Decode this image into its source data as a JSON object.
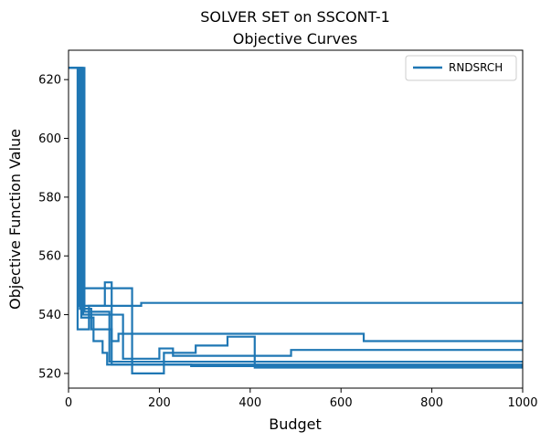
{
  "chart_data": {
    "type": "line",
    "title": "SOLVER SET on SSCONT-1",
    "subtitle": "Objective Curves",
    "xlabel": "Budget",
    "ylabel": "Objective Function Value",
    "xlim": [
      0,
      1000
    ],
    "ylim": [
      515,
      630
    ],
    "xticks": [
      0,
      200,
      400,
      600,
      800,
      1000
    ],
    "yticks": [
      520,
      540,
      560,
      580,
      600,
      620
    ],
    "grid": false,
    "legend": {
      "position": "top-right",
      "entries": [
        "RNDSRCH"
      ]
    },
    "color": "#1f77b4",
    "series": [
      {
        "name": "RNDSRCH",
        "step": true,
        "points": [
          [
            0,
            624
          ],
          [
            30,
            624
          ],
          [
            30,
            549
          ],
          [
            140,
            549
          ],
          [
            140,
            520
          ],
          [
            210,
            520
          ],
          [
            210,
            527
          ],
          [
            280,
            527
          ],
          [
            280,
            529.5
          ],
          [
            350,
            529.5
          ],
          [
            350,
            532.5
          ],
          [
            410,
            532.5
          ],
          [
            410,
            522
          ],
          [
            1000,
            522
          ]
        ]
      },
      {
        "step": true,
        "points": [
          [
            0,
            624
          ],
          [
            25,
            624
          ],
          [
            25,
            542
          ],
          [
            50,
            542
          ],
          [
            50,
            535
          ],
          [
            95,
            535
          ],
          [
            95,
            531
          ],
          [
            110,
            531
          ],
          [
            110,
            533.5
          ],
          [
            650,
            533.5
          ],
          [
            650,
            531
          ],
          [
            1000,
            531
          ]
        ]
      },
      {
        "step": true,
        "points": [
          [
            0,
            624
          ],
          [
            20,
            624
          ],
          [
            20,
            535
          ],
          [
            45,
            535
          ],
          [
            45,
            543
          ],
          [
            80,
            543
          ],
          [
            80,
            551
          ],
          [
            95,
            551
          ],
          [
            95,
            523
          ],
          [
            140,
            523
          ],
          [
            140,
            524
          ],
          [
            1000,
            524
          ]
        ]
      },
      {
        "step": true,
        "points": [
          [
            0,
            624
          ],
          [
            28,
            624
          ],
          [
            28,
            539
          ],
          [
            55,
            539
          ],
          [
            55,
            531
          ],
          [
            75,
            531
          ],
          [
            75,
            527
          ],
          [
            85,
            527
          ],
          [
            85,
            523
          ],
          [
            270,
            523
          ],
          [
            270,
            522.5
          ],
          [
            1000,
            522.5
          ]
        ]
      },
      {
        "step": true,
        "points": [
          [
            0,
            624
          ],
          [
            32,
            624
          ],
          [
            32,
            540
          ],
          [
            120,
            540
          ],
          [
            120,
            525
          ],
          [
            200,
            525
          ],
          [
            200,
            528.5
          ],
          [
            230,
            528.5
          ],
          [
            230,
            526
          ],
          [
            490,
            526
          ],
          [
            490,
            528
          ],
          [
            1000,
            528
          ]
        ]
      },
      {
        "step": true,
        "points": [
          [
            0,
            624
          ],
          [
            24,
            624
          ],
          [
            24,
            543
          ],
          [
            160,
            543
          ],
          [
            160,
            544
          ],
          [
            1000,
            544
          ]
        ]
      },
      {
        "step": true,
        "points": [
          [
            0,
            624
          ],
          [
            35,
            624
          ],
          [
            35,
            541
          ],
          [
            90,
            541
          ],
          [
            90,
            524
          ],
          [
            140,
            524
          ],
          [
            140,
            523
          ],
          [
            1000,
            523
          ]
        ]
      }
    ]
  }
}
